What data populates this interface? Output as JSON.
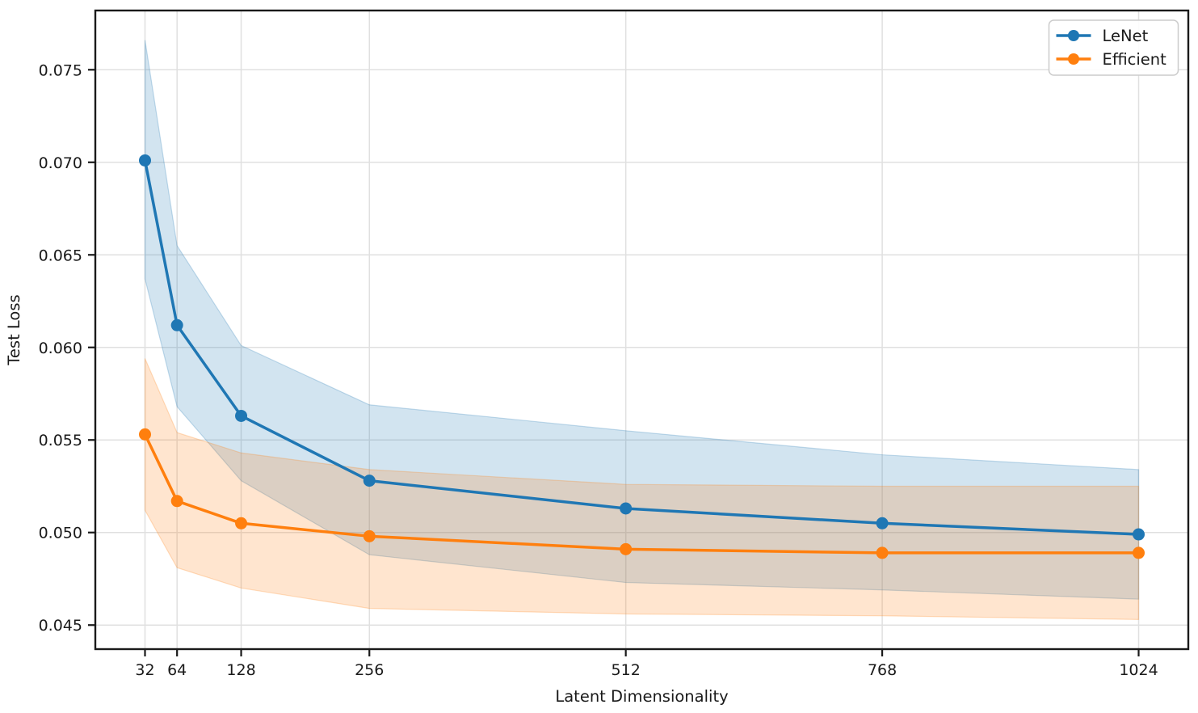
{
  "chart_data": {
    "type": "line",
    "title": "",
    "xlabel": "Latent Dimensionality",
    "ylabel": "Test Loss",
    "x": [
      32,
      64,
      128,
      256,
      512,
      768,
      1024
    ],
    "x_tick_labels": [
      "32",
      "64",
      "128",
      "256",
      "512",
      "768",
      "1024"
    ],
    "y_ticks": [
      0.045,
      0.05,
      0.055,
      0.06,
      0.065,
      0.07,
      0.075
    ],
    "y_tick_labels": [
      "0.045",
      "0.050",
      "0.055",
      "0.060",
      "0.065",
      "0.070",
      "0.075"
    ],
    "xlim": [
      -17.6,
      1073.6
    ],
    "ylim": [
      0.0437,
      0.0782
    ],
    "grid": true,
    "legend_position": "upper right",
    "series": [
      {
        "name": "LeNet",
        "color": "#1f77b4",
        "band_color": "rgba(31,119,180,0.2)",
        "values": [
          0.0701,
          0.0612,
          0.0563,
          0.0528,
          0.0513,
          0.0505,
          0.0499
        ],
        "band_upper": [
          0.0766,
          0.0655,
          0.0601,
          0.0569,
          0.0555,
          0.0542,
          0.0534
        ],
        "band_lower": [
          0.0637,
          0.0568,
          0.0528,
          0.0488,
          0.0473,
          0.0469,
          0.0464
        ]
      },
      {
        "name": "Efficient",
        "color": "#ff7f0e",
        "band_color": "rgba(255,127,14,0.2)",
        "values": [
          0.0553,
          0.0517,
          0.0505,
          0.0498,
          0.0491,
          0.0489,
          0.0489
        ],
        "band_upper": [
          0.0594,
          0.0554,
          0.0543,
          0.0534,
          0.0526,
          0.0525,
          0.0525
        ],
        "band_lower": [
          0.0512,
          0.0481,
          0.047,
          0.0459,
          0.0456,
          0.0455,
          0.0453
        ]
      }
    ],
    "colors": {
      "grid": "#e0e0e0",
      "spine": "#1a1a1a",
      "legend_border": "#cccccc",
      "legend_bg": "#ffffff",
      "text": "#1a1a1a"
    }
  }
}
